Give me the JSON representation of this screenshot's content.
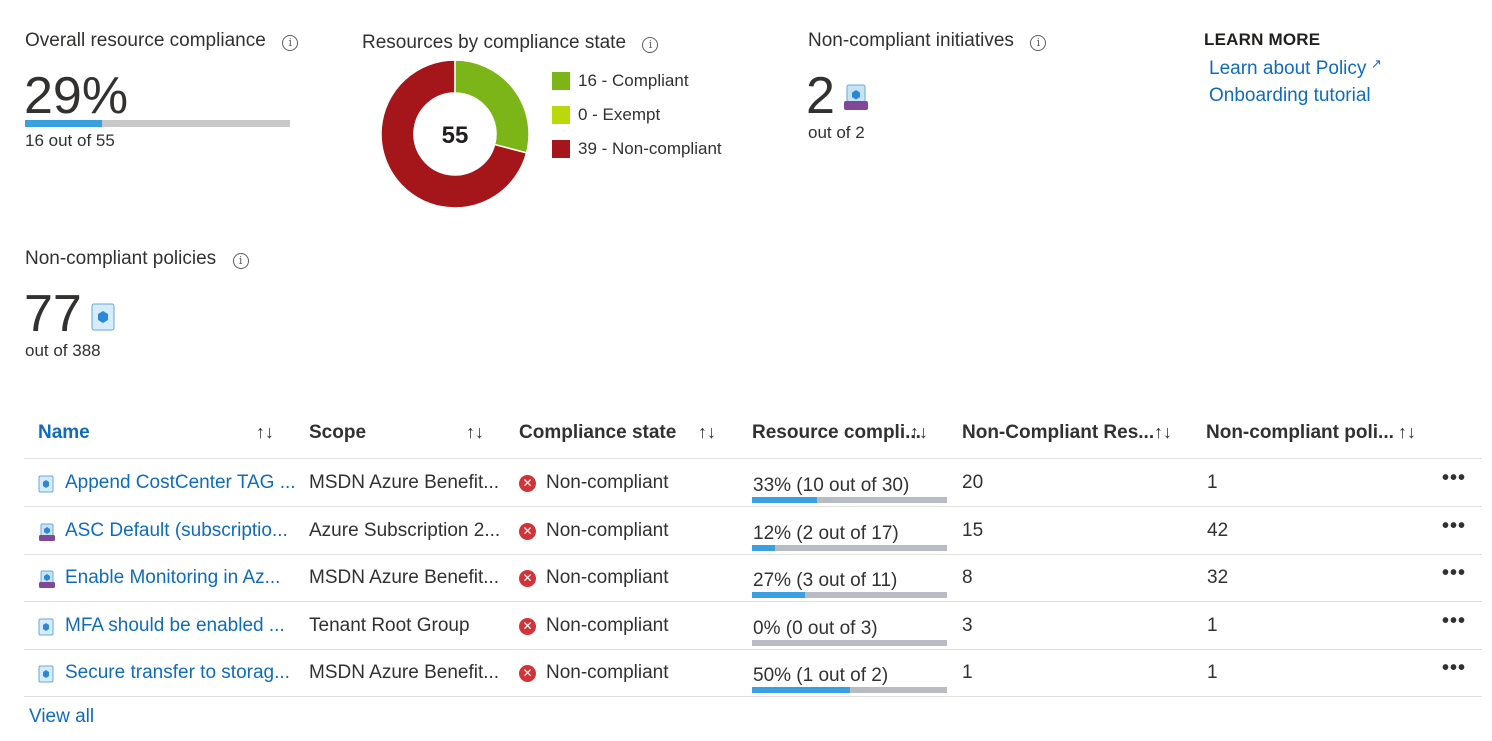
{
  "overall": {
    "title": "Overall resource compliance",
    "percent": "29%",
    "fraction": 0.2909,
    "detail": "16 out of 55"
  },
  "by_state": {
    "title": "Resources by compliance state",
    "total": "55",
    "legend": [
      {
        "label": "16 - Compliant",
        "color": "#7cb518",
        "value": 16
      },
      {
        "label": "0 - Exempt",
        "color": "#bad80a",
        "value": 0
      },
      {
        "label": "39 - Non-compliant",
        "color": "#a4161a",
        "value": 39
      }
    ]
  },
  "initiatives": {
    "title": "Non-compliant initiatives",
    "count": "2",
    "detail": "out of 2"
  },
  "learn_more": {
    "title": "LEARN MORE",
    "links": [
      "Learn about Policy",
      "Onboarding tutorial"
    ]
  },
  "policies": {
    "title": "Non-compliant policies",
    "count": "77",
    "detail": "out of 388"
  },
  "table": {
    "columns": [
      "Name",
      "Scope",
      "Compliance state",
      "Resource compli...",
      "Non-Compliant Res...",
      "Non-compliant poli..."
    ],
    "sort_glyph": "↑↓",
    "rows": [
      {
        "icon": "policy-icon",
        "name": "Append CostCenter TAG ...",
        "scope": "MSDN Azure Benefit...",
        "state": "Non-compliant",
        "compliance": "33% (10 out of 30)",
        "ratio": 0.333,
        "nc_resources": "20",
        "nc_policies": "1"
      },
      {
        "icon": "initiative-icon",
        "name": "ASC Default (subscriptio...",
        "scope": "Azure Subscription 2...",
        "state": "Non-compliant",
        "compliance": "12% (2 out of 17)",
        "ratio": 0.118,
        "nc_resources": "15",
        "nc_policies": "42"
      },
      {
        "icon": "initiative-icon",
        "name": "Enable Monitoring in Az...",
        "scope": "MSDN Azure Benefit...",
        "state": "Non-compliant",
        "compliance": "27% (3 out of 11)",
        "ratio": 0.273,
        "nc_resources": "8",
        "nc_policies": "32"
      },
      {
        "icon": "policy-icon",
        "name": "MFA should be enabled ...",
        "scope": "Tenant Root Group",
        "state": "Non-compliant",
        "compliance": "0% (0 out of 3)",
        "ratio": 0,
        "nc_resources": "3",
        "nc_policies": "1"
      },
      {
        "icon": "policy-icon",
        "name": "Secure transfer to storag...",
        "scope": "MSDN Azure Benefit...",
        "state": "Non-compliant",
        "compliance": "50% (1 out of 2)",
        "ratio": 0.5,
        "nc_resources": "1",
        "nc_policies": "1"
      }
    ],
    "more_glyph": "•••",
    "view_all": "View all"
  }
}
